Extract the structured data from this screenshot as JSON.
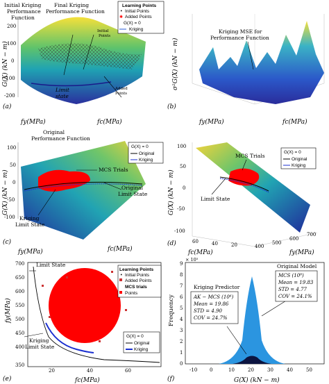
{
  "panel_a": {
    "tag": "(a)",
    "ann_initial": [
      "Initial Kriging",
      "Performance",
      "Function"
    ],
    "ann_final": [
      "Final Kriging",
      "Performance Function"
    ],
    "ann_initial_points": [
      "Initial",
      "Points"
    ],
    "ann_added_points": [
      "Added",
      "Points"
    ],
    "ann_limit": [
      "Limit",
      "state"
    ],
    "ylabel": "G(X) (kN − m)",
    "xlabel_left": "fy(MPa)",
    "xlabel_right": "fc(MPa)",
    "zticks": [
      "200",
      "100",
      "0",
      "-100",
      "-200"
    ],
    "legend": {
      "title": "Learning Points",
      "items": [
        "Initial Points",
        "Added Points",
        "G(X) = 0",
        "Kriging"
      ]
    }
  },
  "panel_b": {
    "tag": "(b)",
    "ann": [
      "Kriging MSE for",
      "Performance Function"
    ],
    "ylabel": "σ²G(X) (kN − m)",
    "xlabel_left": "fy(MPa)",
    "xlabel_right": "fc(MPa)"
  },
  "panel_c": {
    "tag": "(c)",
    "ann_original": [
      "Original",
      "Performance Function"
    ],
    "ann_mcs": "MCS Trials",
    "ann_orig_limit": [
      "Original",
      "Limit State"
    ],
    "ann_kriging_limit": [
      "Kriging",
      "Limit State"
    ],
    "ylabel": "G(X) (kN − m)",
    "xlabel_left": "fy(MPa)",
    "xlabel_right": "fc(MPa)",
    "zticks": [
      "100",
      "50",
      "0",
      "-50",
      "-100"
    ],
    "legend": {
      "items": [
        "G(X) = 0",
        "Original",
        "Kriging"
      ]
    }
  },
  "panel_d": {
    "tag": "(d)",
    "ann_mcs": "MCS Trials",
    "ann_limit": "Limit State",
    "ylabel": "G(X) (kN − m)",
    "xlabel_left": "fc(MPa)",
    "xlabel_right": "fy(MPa)",
    "zticks": [
      "100",
      "50",
      "0",
      "-50",
      "-100"
    ],
    "xticks_left": [
      "60",
      "40",
      "20"
    ],
    "xticks_right": [
      "400",
      "500",
      "600",
      "700"
    ],
    "legend": {
      "items": [
        "G(X) = 0",
        "Original",
        "Kriging"
      ]
    }
  },
  "panel_e": {
    "tag": "(e)",
    "ann_limit": "Limit State",
    "ann_kriging_limit": [
      "Kriging",
      "Limit State"
    ],
    "ylabel": "fy(MPa)",
    "xlabel": "fc(MPa)",
    "yticks": [
      "700",
      "650",
      "600",
      "550",
      "500",
      "450",
      "400",
      "350"
    ],
    "xticks": [
      "20",
      "40",
      "60"
    ],
    "legend_top": {
      "title": "Learning Points",
      "items": [
        "Initial Points",
        "Added Points"
      ],
      "mcs_title": "MCS trials",
      "mcs_item": "Points"
    },
    "legend_bottom": {
      "items": [
        "G(X) = 0",
        "Original",
        "Kriging"
      ]
    }
  },
  "panel_f": {
    "tag": "(f)",
    "exponent": "× 10⁵",
    "ylabel": "Frequency",
    "xlabel": "G(X) (kN − m)",
    "xticks": [
      "-10",
      "0",
      "10",
      "20",
      "30",
      "40",
      "50"
    ],
    "yticks": [
      "0",
      "1",
      "2",
      "3",
      "4",
      "5",
      "6",
      "7",
      "8",
      "9"
    ],
    "orig_title": "Original Model",
    "orig_box": [
      "MCS (10⁸)",
      "Mean = 19.83",
      "STD = 4.77",
      "COV = 24.1%"
    ],
    "krig_title": "Kriging Predictor",
    "krig_box": [
      "AK − MCS (10⁶)",
      "Mean = 19.86",
      "STD = 4.90",
      "COV = 24.7%"
    ]
  },
  "colors": {
    "blue": "#1f2a9a",
    "teal": "#21a3b3",
    "yellow": "#f2d33a",
    "red": "#ff0000",
    "green": "#4db870"
  }
}
